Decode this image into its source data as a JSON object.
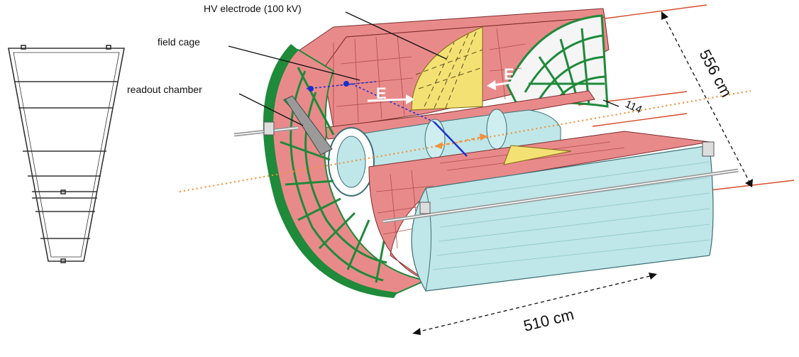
{
  "labels": {
    "hv_electrode": "HV electrode (100 kV)",
    "field_cage": "field cage",
    "readout_chamber": "readout chamber",
    "efield_left": "E",
    "efield_right": "E",
    "dim_small": "114",
    "dim_diameter": "556 cm",
    "dim_length": "510 cm"
  },
  "colors": {
    "green_frame": "#1f8a3a",
    "salmon": "#e98a8a",
    "salmon_dark": "#c25a5a",
    "yellow": "#f3e173",
    "cyan": "#bfe6e8",
    "cyan_dark": "#8cc7cc",
    "orange_line": "#f0923a",
    "red_line": "#d64a28",
    "blue_beam": "#1a2fd0",
    "gray_chamber": "#9a9a9a"
  }
}
